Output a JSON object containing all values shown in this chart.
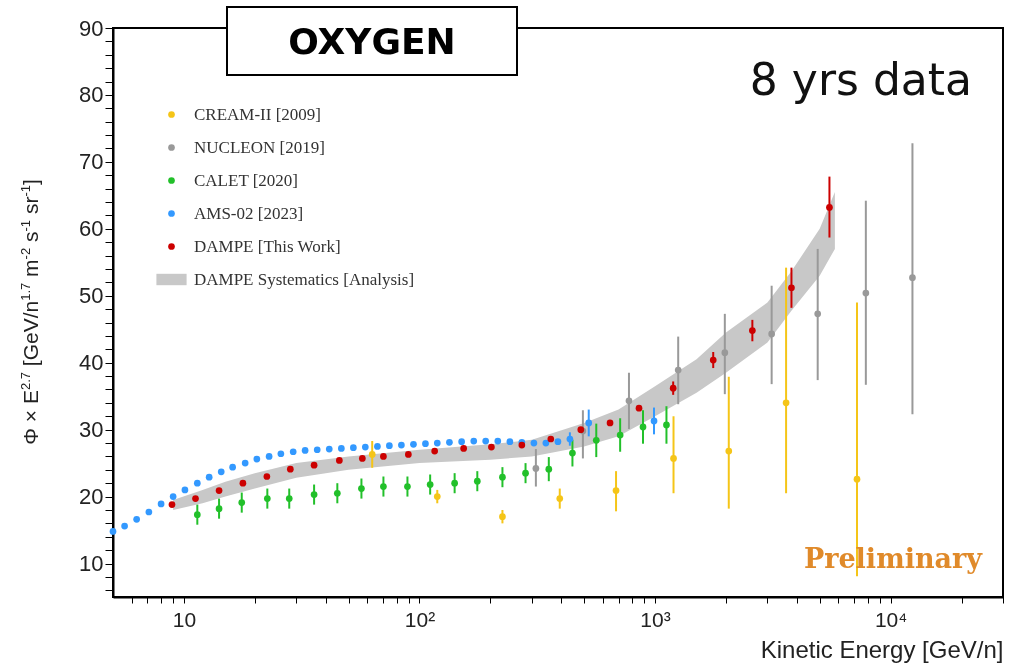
{
  "chart_data": {
    "type": "scatter",
    "title": "OXYGEN",
    "xlabel": "Kinetic Energy [GeV/n]",
    "ylabel": "Φ × E$^{2.7}$ [GeV/n$^{1.7}$ m$^{-2}$ s$^{-1}$ sr$^{-1}$]",
    "annotations": [
      "8 yrs data",
      "Preliminary"
    ],
    "log": "x",
    "marker": "circle",
    "legend": "top left",
    "grid": false,
    "xlim": [
      5,
      30000
    ],
    "ylim": [
      5,
      90
    ],
    "xticks": [
      {
        "value": 6,
        "label": null
      },
      {
        "value": 7,
        "label": null
      },
      {
        "value": 8,
        "label": null
      },
      {
        "value": 9,
        "label": null
      },
      10,
      {
        "value": 20,
        "label": null
      },
      {
        "value": 30,
        "label": null
      },
      {
        "value": 40,
        "label": null
      },
      {
        "value": 50,
        "label": null
      },
      {
        "value": 60,
        "label": null
      },
      {
        "value": 70,
        "label": null
      },
      {
        "value": 80,
        "label": null
      },
      {
        "value": 90,
        "label": null
      },
      {
        "value": 100,
        "label": "10²"
      },
      {
        "value": 200,
        "label": null
      },
      {
        "value": 300,
        "label": null
      },
      {
        "value": 400,
        "label": null
      },
      {
        "value": 500,
        "label": null
      },
      {
        "value": 600,
        "label": null
      },
      {
        "value": 700,
        "label": null
      },
      {
        "value": 800,
        "label": null
      },
      {
        "value": 900,
        "label": null
      },
      {
        "value": 1000,
        "label": "10³"
      },
      {
        "value": 2000,
        "label": null
      },
      {
        "value": 3000,
        "label": null
      },
      {
        "value": 4000,
        "label": null
      },
      {
        "value": 5000,
        "label": null
      },
      {
        "value": 6000,
        "label": null
      },
      {
        "value": 7000,
        "label": null
      },
      {
        "value": 8000,
        "label": null
      },
      {
        "value": 9000,
        "label": null
      },
      {
        "value": 10000,
        "label": "10⁴"
      },
      {
        "value": 20000,
        "label": null
      },
      {
        "value": 30000,
        "label": null
      }
    ],
    "yticks": [
      {
        "value": 6,
        "label": null
      },
      {
        "value": 8,
        "label": null
      },
      10,
      {
        "value": 12,
        "label": null
      },
      {
        "value": 14,
        "label": null
      },
      {
        "value": 16,
        "label": null
      },
      {
        "value": 18,
        "label": null
      },
      20,
      {
        "value": 22,
        "label": null
      },
      {
        "value": 24,
        "label": null
      },
      {
        "value": 26,
        "label": null
      },
      {
        "value": 28,
        "label": null
      },
      30,
      {
        "value": 32,
        "label": null
      },
      {
        "value": 34,
        "label": null
      },
      {
        "value": 36,
        "label": null
      },
      {
        "value": 38,
        "label": null
      },
      40,
      {
        "value": 42,
        "label": null
      },
      {
        "value": 44,
        "label": null
      },
      {
        "value": 46,
        "label": null
      },
      {
        "value": 48,
        "label": null
      },
      50,
      {
        "value": 52,
        "label": null
      },
      {
        "value": 54,
        "label": null
      },
      {
        "value": 56,
        "label": null
      },
      {
        "value": 58,
        "label": null
      },
      60,
      {
        "value": 62,
        "label": null
      },
      {
        "value": 64,
        "label": null
      },
      {
        "value": 66,
        "label": null
      },
      {
        "value": 68,
        "label": null
      },
      70,
      {
        "value": 72,
        "label": null
      },
      {
        "value": 74,
        "label": null
      },
      {
        "value": 76,
        "label": null
      },
      {
        "value": 78,
        "label": null
      },
      80,
      {
        "value": 82,
        "label": null
      },
      {
        "value": 84,
        "label": null
      },
      {
        "value": 86,
        "label": null
      },
      {
        "value": 88,
        "label": null
      },
      90
    ],
    "series": [
      {
        "name": "CREAM-II [2009]",
        "type": "scatter",
        "color": "#f5c518",
        "x": [
          63,
          119,
          225,
          394,
          683,
          1198,
          2056,
          3600,
          7200
        ],
        "values": [
          26.3,
          20.0,
          17.0,
          19.7,
          20.9,
          25.7,
          26.8,
          34.0,
          22.6
        ],
        "errors": [
          2,
          1,
          1,
          1.5,
          [
            17.8,
            23.8
          ],
          [
            20.5,
            32.0
          ],
          [
            18.2,
            37.9
          ],
          [
            20.5,
            54.2
          ],
          [
            8.1,
            49.0
          ]
        ]
      },
      {
        "name": "NUCLEON [2019]",
        "type": "scatter",
        "color": "#999999",
        "x": [
          312,
          494,
          775,
          1254,
          1978,
          3126,
          4903,
          7850,
          12380
        ],
        "values": [
          24.2,
          29.8,
          34.3,
          38.9,
          41.5,
          44.3,
          47.3,
          50.4,
          52.7
        ],
        "errors": [
          [
            21.5,
            27.1
          ],
          [
            25.7,
            32.9
          ],
          [
            30.1,
            38.5
          ],
          [
            33.8,
            43.9
          ],
          [
            35.3,
            47.3
          ],
          [
            36.8,
            51.5
          ],
          [
            37.4,
            57.0
          ],
          [
            36.7,
            64.2
          ],
          [
            32.3,
            72.8
          ]
        ]
      },
      {
        "name": "CALET [2020]",
        "type": "scatter",
        "color": "#22c02a",
        "x": [
          11.4,
          14.1,
          17.6,
          22.6,
          28.0,
          35.7,
          44.8,
          56.7,
          70.3,
          88.9,
          111,
          141,
          176,
          225,
          282,
          354,
          446,
          563,
          711,
          889,
          1118
        ],
        "values": [
          17.3,
          18.2,
          19.1,
          19.7,
          19.7,
          20.3,
          20.5,
          21.2,
          21.5,
          21.5,
          21.8,
          22.0,
          22.3,
          22.9,
          23.5,
          24.1,
          26.5,
          28.4,
          29.2,
          30.4,
          30.7
        ],
        "errors": [
          1.5,
          1.5,
          1.5,
          1.5,
          1.5,
          1.5,
          1.5,
          1.5,
          1.5,
          1.5,
          1.5,
          1.5,
          1.5,
          1.5,
          1.5,
          1.8,
          2,
          2.5,
          2.5,
          2.5,
          2.8
        ]
      },
      {
        "name": "AMS-02 [2023]",
        "type": "scatter",
        "color": "#3399ff",
        "x": [
          5.0,
          5.6,
          6.3,
          7.1,
          8.0,
          9.0,
          10.1,
          11.4,
          12.8,
          14.4,
          16.1,
          18.2,
          20.4,
          23.0,
          25.8,
          29.1,
          32.7,
          36.8,
          41.4,
          46.6,
          52.4,
          58.9,
          66.3,
          74.5,
          83.8,
          94.3,
          106,
          119,
          134,
          151,
          170,
          191,
          215,
          242,
          272,
          306,
          344,
          387,
          435,
          523,
          990
        ],
        "values": [
          14.8,
          15.6,
          16.6,
          17.7,
          18.9,
          20.0,
          21.0,
          22.0,
          22.9,
          23.7,
          24.4,
          25.0,
          25.6,
          26.0,
          26.4,
          26.7,
          26.9,
          27.0,
          27.1,
          27.2,
          27.3,
          27.4,
          27.5,
          27.6,
          27.7,
          27.8,
          27.9,
          28.0,
          28.1,
          28.2,
          28.3,
          28.3,
          28.3,
          28.2,
          28.1,
          28.0,
          28.0,
          28.2,
          28.6,
          31.0,
          31.3
        ],
        "errors": [
          null,
          null,
          null,
          null,
          null,
          null,
          null,
          null,
          null,
          null,
          null,
          null,
          null,
          null,
          null,
          null,
          null,
          null,
          null,
          null,
          null,
          null,
          null,
          null,
          null,
          null,
          null,
          null,
          null,
          null,
          null,
          null,
          null,
          null,
          null,
          null,
          null,
          null,
          1,
          2,
          2
        ]
      },
      {
        "name": "DAMPE [This Work]",
        "type": "scatter",
        "color": "#cc0000",
        "x": [
          8.9,
          11.2,
          14.1,
          17.8,
          22.5,
          28.3,
          35.7,
          45.7,
          57.2,
          70.3,
          89.7,
          116,
          154,
          202,
          272,
          361,
          484,
          644,
          855,
          1194,
          1766,
          2589,
          3794,
          5500
        ],
        "values": [
          18.8,
          19.7,
          20.9,
          22.0,
          23.0,
          24.1,
          24.7,
          25.4,
          25.7,
          26.0,
          26.3,
          26.8,
          27.2,
          27.4,
          27.7,
          28.6,
          30.0,
          31.0,
          33.2,
          36.2,
          40.4,
          44.8,
          51.2,
          63.2
        ],
        "errors": [
          null,
          null,
          null,
          null,
          null,
          null,
          null,
          null,
          null,
          null,
          null,
          null,
          null,
          null,
          null,
          null,
          null,
          null,
          null,
          1,
          1.2,
          1.6,
          [
            48.2,
            54.2
          ],
          [
            58.7,
            67.8
          ]
        ]
      },
      {
        "name": "DAMPE Systematics [Analysis]",
        "type": "area",
        "color": "#c8c8c8",
        "x": [
          9,
          12,
          15,
          20,
          30,
          50,
          100,
          200,
          300,
          500,
          700,
          1000,
          1500,
          2000,
          3000,
          3800,
          5000,
          5800
        ],
        "marker": "none",
        "values": [
          null,
          null,
          null,
          null,
          null,
          null,
          null,
          null,
          null,
          null,
          null,
          null,
          null,
          null,
          null,
          null,
          null,
          null
        ],
        "lower": [
          18.0,
          19.0,
          20.0,
          21.2,
          22.8,
          24.0,
          25.0,
          25.5,
          26.0,
          27.5,
          29.0,
          32.0,
          35.5,
          38.5,
          43.0,
          47.8,
          53.0,
          57.0
        ],
        "upper": [
          19.5,
          21.0,
          22.2,
          23.5,
          25.0,
          26.0,
          27.0,
          27.8,
          28.5,
          31.0,
          33.0,
          36.5,
          40.5,
          44.5,
          49.0,
          53.7,
          60.0,
          65.5
        ]
      }
    ]
  }
}
